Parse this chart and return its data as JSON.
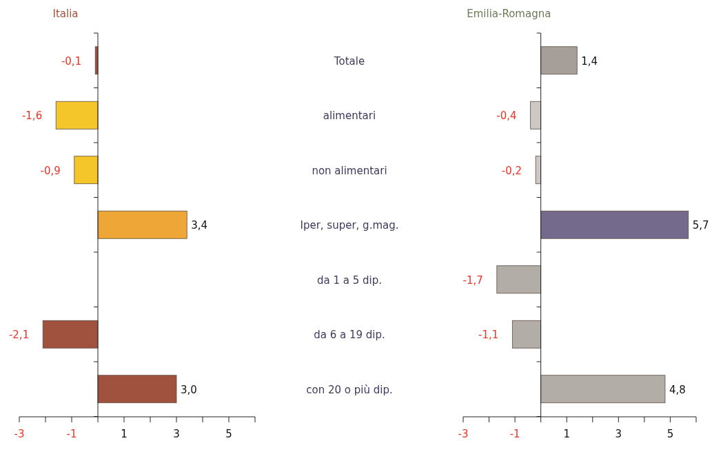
{
  "chart_data": [
    {
      "type": "bar",
      "orientation": "horizontal",
      "title": "Italia",
      "categories": [
        null,
        null,
        null,
        null,
        null,
        null,
        null
      ],
      "values": [
        -0.1,
        -1.6,
        -0.9,
        3.4,
        null,
        -2.1,
        3.0
      ],
      "colors": [
        "#a0523e",
        "#f5c62a",
        "#f5c62a",
        "#eea636",
        null,
        "#a0523e",
        "#a0523e"
      ],
      "value_labels": [
        "-0,1",
        "-1,6",
        "-0,9",
        "3,4",
        null,
        "-2,1",
        "3,0"
      ],
      "xlim": [
        -3,
        6
      ],
      "xticks": [
        -3,
        {
          "value": -2,
          "label": null
        },
        -1,
        {
          "value": 0,
          "label": null
        },
        1,
        {
          "value": 2,
          "label": null
        },
        3,
        {
          "value": 4,
          "label": null
        },
        5,
        {
          "value": 6,
          "label": null
        }
      ]
    },
    {
      "type": "bar",
      "orientation": "horizontal",
      "title": "Emilia-Romagna",
      "categories": [
        "Totale",
        "alimentari",
        "non alimentari",
        "Iper, super, g.mag.",
        "da 1 a 5 dip.",
        "da 6 a 19 dip.",
        "con 20 o più dip."
      ],
      "values": [
        1.4,
        -0.4,
        -0.2,
        5.7,
        -1.7,
        -1.1,
        4.8
      ],
      "colors": [
        "#a69e98",
        "#cdc8c4",
        "#cdc8c4",
        "#736a8c",
        "#b3ada8",
        "#b3ada8",
        "#b3ada8"
      ],
      "value_labels": [
        "1,4",
        "-0,4",
        "-0,2",
        "5,7",
        "-1,7",
        "-1,1",
        "4,8"
      ],
      "xlim": [
        -3,
        6
      ],
      "xticks": [
        -3,
        {
          "value": -2,
          "label": null
        },
        -1,
        {
          "value": 0,
          "label": null
        },
        1,
        {
          "value": 2,
          "label": null
        },
        3,
        {
          "value": 4,
          "label": null
        },
        5,
        {
          "value": 6,
          "label": null
        }
      ]
    }
  ]
}
